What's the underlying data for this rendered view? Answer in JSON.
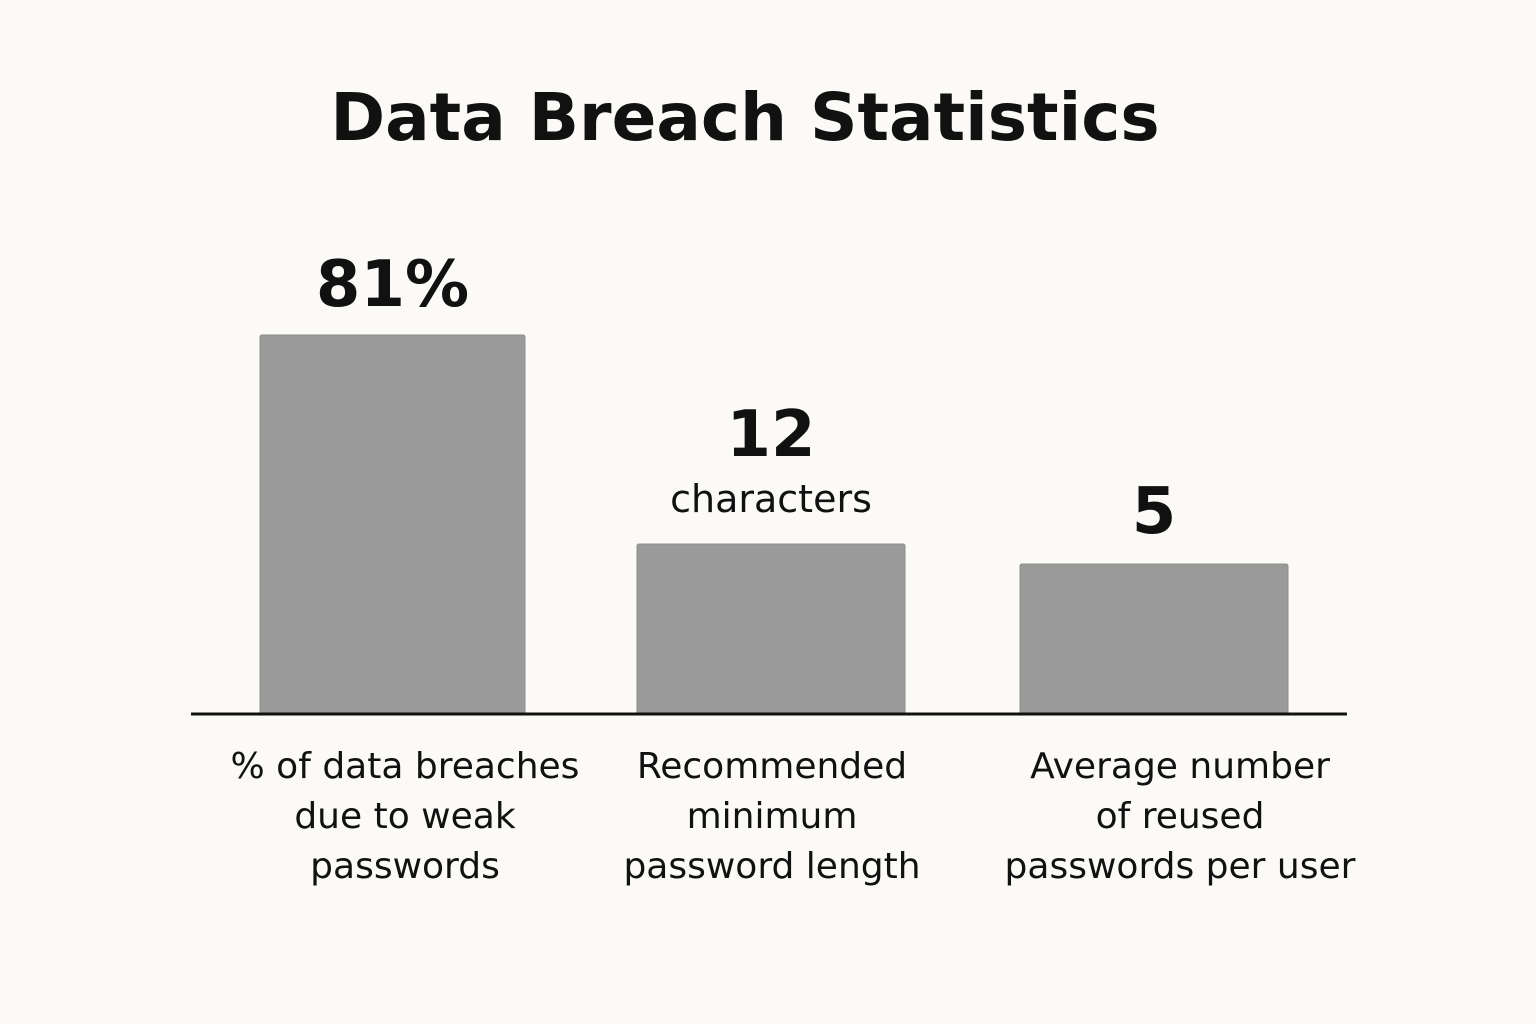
{
  "chart_data": {
    "type": "bar",
    "title": "Data Breach Statistics",
    "categories": [
      "% of data breaches due to weak passwords",
      "Recommended minimum password length",
      "Average number of reused passwords per user"
    ],
    "category_lines": [
      [
        "% of data breaches",
        "due to weak",
        "passwords"
      ],
      [
        "Recommended",
        "minimum",
        "password length"
      ],
      [
        "Average number",
        "of reused",
        "passwords per user"
      ]
    ],
    "values": [
      81,
      12,
      5
    ],
    "value_labels": [
      "81%",
      "12",
      "5"
    ],
    "unit_labels": [
      "",
      "characters",
      ""
    ],
    "colors": {
      "background": "#fbfaf7",
      "bar": "#9a9a9a",
      "baseline": "#111111",
      "text": "#111111"
    },
    "xlabel": "",
    "ylabel": "",
    "grid": false,
    "legend": "none"
  }
}
